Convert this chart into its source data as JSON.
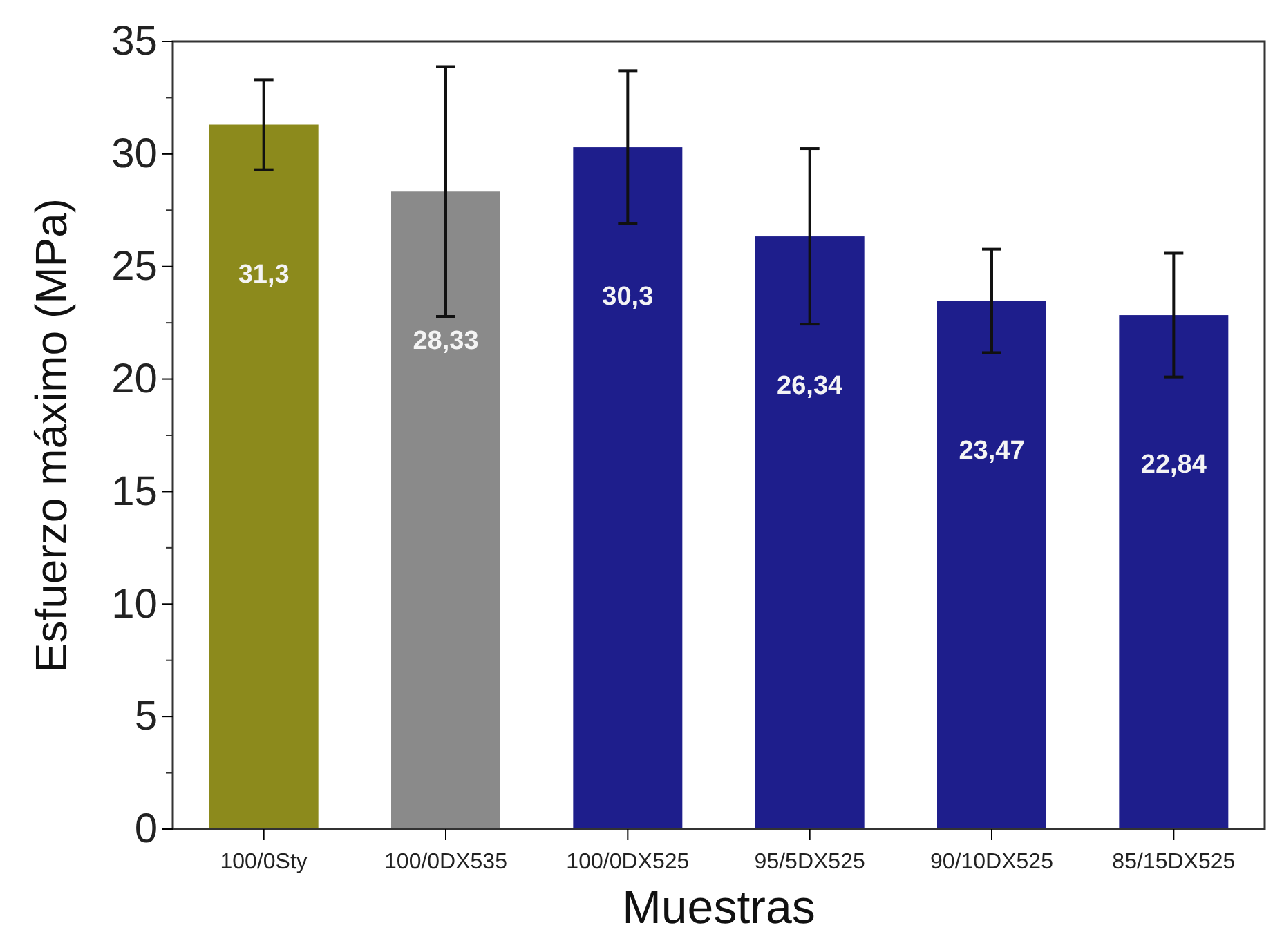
{
  "chart_data": {
    "type": "bar",
    "xlabel": "Muestras",
    "ylabel": "Esfuerzo máximo (MPa)",
    "categories": [
      "100/0Sty",
      "100/0DX535",
      "100/0DX525",
      "95/5DX525",
      "90/10DX525",
      "85/15DX525"
    ],
    "values": [
      31.3,
      28.33,
      30.3,
      26.34,
      23.47,
      22.84
    ],
    "colors": [
      "#8c8a1c",
      "#8a8a8a",
      "#1e1e8c",
      "#1e1e8c",
      "#1e1e8c",
      "#1e1e8c"
    ],
    "errors": [
      2,
      5.55,
      3.4,
      3.9,
      2.3,
      2.75
    ],
    "value_labels": [
      "31,3",
      "28,33",
      "30,3",
      "26,34",
      "23,47",
      "22,84"
    ],
    "ylim": [
      0,
      35
    ],
    "yticks": [
      0,
      5,
      10,
      15,
      20,
      25,
      30,
      35
    ],
    "grid": false
  }
}
